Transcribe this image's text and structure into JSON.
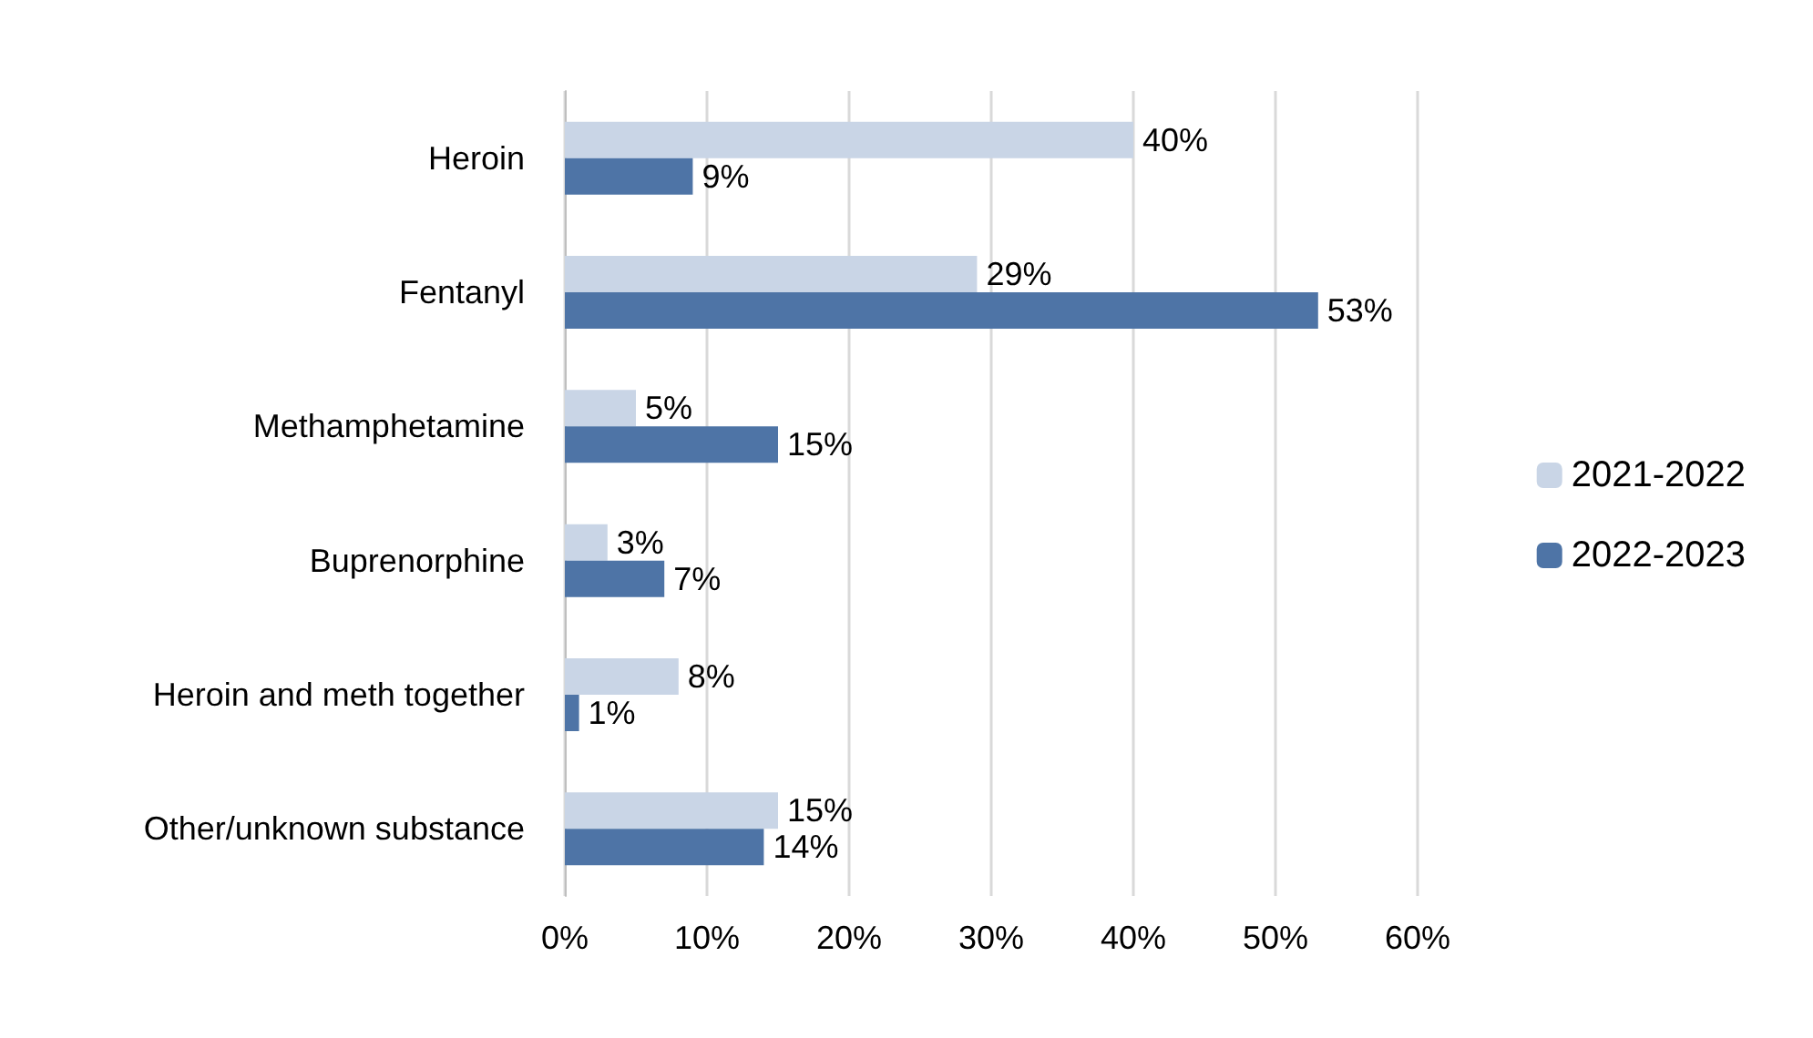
{
  "chart_data": {
    "type": "bar",
    "orientation": "horizontal",
    "categories": [
      "Heroin",
      "Fentanyl",
      "Methamphetamine",
      "Buprenorphine",
      "Heroin and meth together",
      "Other/unknown substance"
    ],
    "series": [
      {
        "name": "2021-2022",
        "color": "#c9d5e6",
        "values": [
          40,
          29,
          5,
          3,
          8,
          15
        ],
        "value_labels": [
          "40%",
          "29%",
          "5%",
          "3%",
          "8%",
          "15%"
        ]
      },
      {
        "name": "2022-2023",
        "color": "#4e74a6",
        "values": [
          9,
          53,
          15,
          7,
          1,
          14
        ],
        "value_labels": [
          "9%",
          "53%",
          "15%",
          "7%",
          "1%",
          "14%"
        ]
      }
    ],
    "xlim": [
      0,
      60
    ],
    "xticks": [
      {
        "value": 0,
        "label": "0%"
      },
      {
        "value": 10,
        "label": "10%"
      },
      {
        "value": 20,
        "label": "20%"
      },
      {
        "value": 30,
        "label": "30%"
      },
      {
        "value": 40,
        "label": "40%"
      },
      {
        "value": 50,
        "label": "50%"
      },
      {
        "value": 60,
        "label": "60%"
      }
    ],
    "grid": "x",
    "legend": "right"
  }
}
